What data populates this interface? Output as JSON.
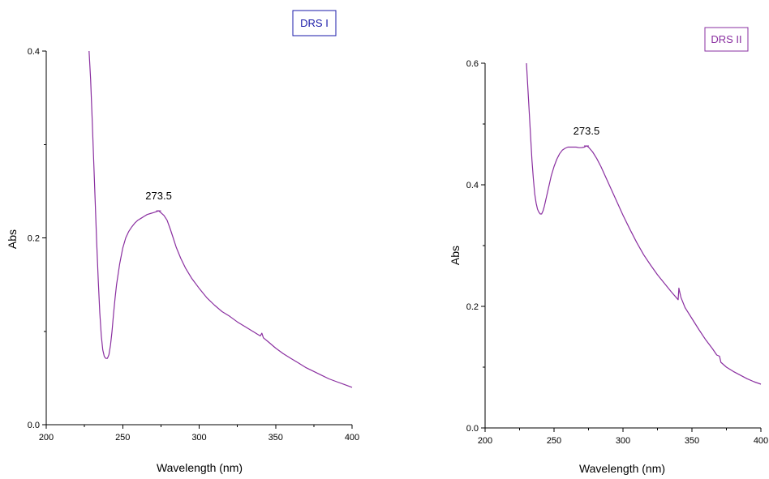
{
  "chart_data": [
    {
      "type": "line",
      "legend": "DRS I",
      "legend_color": "#1a1aa8",
      "line_color": "#8a2fa0",
      "xlabel": "Wavelength (nm)",
      "ylabel": "Abs",
      "xlim": [
        200,
        400
      ],
      "ylim": [
        0.0,
        0.4
      ],
      "x_ticks": [
        200,
        250,
        300,
        350,
        400
      ],
      "y_ticks": [
        0.0,
        0.2,
        0.4
      ],
      "x_tick_labels": [
        "200",
        "250",
        "300",
        "350",
        "400"
      ],
      "y_tick_labels": [
        "0.0",
        "0.2",
        "0.4"
      ],
      "peak": {
        "x": 273.5,
        "y": 0.229,
        "label": "273.5"
      },
      "series": [
        {
          "x": [
            228,
            229,
            230,
            231,
            232,
            233,
            234,
            235,
            236,
            237,
            238,
            239,
            240,
            241,
            242,
            243,
            244,
            245,
            246,
            248,
            250,
            252,
            254,
            256,
            258,
            260,
            262,
            264,
            266,
            268,
            270,
            272,
            273.5,
            275,
            277,
            279,
            281,
            283,
            285,
            288,
            291,
            295,
            300,
            305,
            310,
            315,
            320,
            325,
            330,
            335,
            340,
            341,
            342,
            345,
            350,
            355,
            360,
            365,
            370,
            375,
            380,
            385,
            390,
            395,
            400
          ],
          "y": [
            0.4,
            0.37,
            0.33,
            0.285,
            0.24,
            0.195,
            0.155,
            0.12,
            0.095,
            0.08,
            0.073,
            0.071,
            0.071,
            0.075,
            0.085,
            0.1,
            0.118,
            0.135,
            0.15,
            0.172,
            0.189,
            0.2,
            0.207,
            0.212,
            0.216,
            0.219,
            0.221,
            0.223,
            0.225,
            0.226,
            0.227,
            0.228,
            0.229,
            0.227,
            0.224,
            0.219,
            0.21,
            0.2,
            0.19,
            0.178,
            0.168,
            0.157,
            0.146,
            0.136,
            0.128,
            0.121,
            0.116,
            0.11,
            0.105,
            0.1,
            0.095,
            0.098,
            0.093,
            0.089,
            0.082,
            0.076,
            0.071,
            0.066,
            0.061,
            0.057,
            0.053,
            0.049,
            0.046,
            0.043,
            0.04
          ]
        }
      ]
    },
    {
      "type": "line",
      "legend": "DRS II",
      "legend_color": "#8a2fa0",
      "line_color": "#8a2fa0",
      "xlabel": "Wavelength (nm)",
      "ylabel": "Abs",
      "xlim": [
        200,
        400
      ],
      "ylim": [
        0.0,
        0.6
      ],
      "x_ticks": [
        200,
        250,
        300,
        350,
        400
      ],
      "y_ticks": [
        0.0,
        0.2,
        0.4,
        0.6
      ],
      "x_tick_labels": [
        "200",
        "250",
        "300",
        "350",
        "400"
      ],
      "y_tick_labels": [
        "0.0",
        "0.2",
        "0.4",
        "0.6"
      ],
      "peak": {
        "x": 273.5,
        "y": 0.464,
        "label": "273.5"
      },
      "series": [
        {
          "x": [
            230,
            231,
            232,
            233,
            234,
            235,
            236,
            237,
            238,
            239,
            240,
            241,
            242,
            243,
            244,
            246,
            248,
            250,
            252,
            254,
            256,
            258,
            260,
            262,
            264,
            266,
            268,
            270,
            272,
            273.5,
            275,
            278,
            281,
            284,
            288,
            292,
            296,
            300,
            305,
            310,
            315,
            320,
            325,
            330,
            335,
            340,
            340.5,
            341,
            342,
            345,
            350,
            355,
            360,
            365,
            368,
            370,
            371,
            375,
            380,
            385,
            390,
            395,
            400
          ],
          "y": [
            0.6,
            0.56,
            0.52,
            0.48,
            0.44,
            0.41,
            0.385,
            0.37,
            0.36,
            0.355,
            0.352,
            0.352,
            0.357,
            0.365,
            0.375,
            0.395,
            0.415,
            0.43,
            0.442,
            0.451,
            0.457,
            0.46,
            0.462,
            0.462,
            0.462,
            0.462,
            0.461,
            0.461,
            0.462,
            0.464,
            0.462,
            0.454,
            0.443,
            0.43,
            0.41,
            0.39,
            0.37,
            0.35,
            0.327,
            0.305,
            0.285,
            0.268,
            0.252,
            0.238,
            0.224,
            0.211,
            0.23,
            0.225,
            0.215,
            0.198,
            0.18,
            0.162,
            0.145,
            0.13,
            0.12,
            0.118,
            0.108,
            0.1,
            0.093,
            0.087,
            0.081,
            0.076,
            0.072
          ]
        }
      ]
    }
  ]
}
